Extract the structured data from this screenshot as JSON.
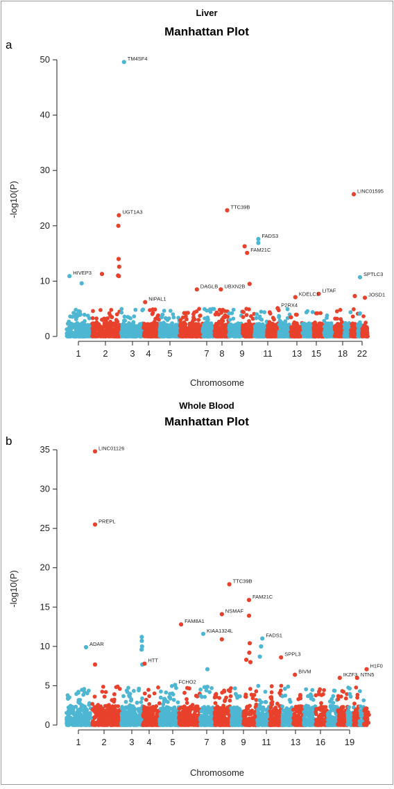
{
  "colors": {
    "odd": "#4db6d3",
    "even": "#e8412c",
    "frame": "#999999"
  },
  "chart_data": [
    {
      "type": "scatter",
      "panel_label": "a",
      "tissue": "Liver",
      "title": "Manhattan Plot",
      "xlabel": "Chromosome",
      "ylabel": "-log10(P)",
      "ylim": [
        0,
        50
      ],
      "yticks": [
        0,
        10,
        20,
        30,
        40,
        50
      ],
      "xtick_labels": [
        "1",
        "2",
        "3",
        "4",
        "5",
        "7",
        "8",
        "9",
        "11",
        "13",
        "15",
        "18",
        "22"
      ],
      "seed": 11,
      "annotated_points": [
        {
          "chrom": 3,
          "pos": 0.12,
          "y": 49.6,
          "gene": "TM4SF4"
        },
        {
          "chrom": 20,
          "pos": 0.4,
          "y": 25.7,
          "gene": "LINC01595"
        },
        {
          "chrom": 2,
          "pos": 0.96,
          "y": 21.9,
          "gene": "UGT1A3"
        },
        {
          "chrom": 8,
          "pos": 0.88,
          "y": 22.8,
          "gene": "TTC39B"
        },
        {
          "chrom": 11,
          "pos": 0.3,
          "y": 17.6,
          "gene": "FADS3"
        },
        {
          "chrom": 10,
          "pos": 0.4,
          "y": 15.1,
          "gene": "FAM21C"
        },
        {
          "chrom": 1,
          "pos": 0.12,
          "y": 10.9,
          "gene": "HIVEP3"
        },
        {
          "chrom": 21,
          "pos": 0.5,
          "y": 10.7,
          "gene": "SPTLC3"
        },
        {
          "chrom": 6,
          "pos": 0.75,
          "y": 8.5,
          "gene": "DAGLB"
        },
        {
          "chrom": 8,
          "pos": 0.45,
          "y": 8.5,
          "gene": "UBXN2B"
        },
        {
          "chrom": 16,
          "pos": 0.5,
          "y": 7.7,
          "gene": "LITAF"
        },
        {
          "chrom": 14,
          "pos": 0.4,
          "y": 7.1,
          "gene": "KDELC1"
        },
        {
          "chrom": 22,
          "pos": 0.5,
          "y": 7.0,
          "gene": "JOSD1"
        },
        {
          "chrom": 4,
          "pos": 0.1,
          "y": 6.2,
          "gene": "NIPAL1"
        },
        {
          "chrom": 12,
          "pos": 0.9,
          "y": 5.1,
          "gene": "P2RX4"
        }
      ],
      "extra_points": [
        {
          "chrom": 1,
          "pos": 0.62,
          "y": 9.6
        },
        {
          "chrom": 2,
          "pos": 0.35,
          "y": 11.3
        },
        {
          "chrom": 2,
          "pos": 0.94,
          "y": 20.0
        },
        {
          "chrom": 2,
          "pos": 0.95,
          "y": 14.0
        },
        {
          "chrom": 2,
          "pos": 0.97,
          "y": 12.6
        },
        {
          "chrom": 2,
          "pos": 0.93,
          "y": 11.0
        },
        {
          "chrom": 2,
          "pos": 0.96,
          "y": 10.9
        },
        {
          "chrom": 11,
          "pos": 0.3,
          "y": 16.9
        },
        {
          "chrom": 10,
          "pos": 0.2,
          "y": 16.3
        },
        {
          "chrom": 10,
          "pos": 0.6,
          "y": 9.5
        },
        {
          "chrom": 20,
          "pos": 0.55,
          "y": 7.3
        }
      ]
    },
    {
      "type": "scatter",
      "panel_label": "b",
      "tissue": "Whole Blood",
      "title": "Manhattan Plot",
      "xlabel": "Chromosome",
      "ylabel": "-log10(P)",
      "ylim": [
        0,
        35
      ],
      "yticks": [
        0,
        5,
        10,
        15,
        20,
        25,
        30,
        35
      ],
      "xtick_labels": [
        "1",
        "2",
        "3",
        "4",
        "5",
        "7",
        "8",
        "9",
        "11",
        "13",
        "16",
        "19"
      ],
      "seed": 29,
      "annotated_points": [
        {
          "chrom": 2,
          "pos": 0.1,
          "y": 34.8,
          "gene": "LINC01126"
        },
        {
          "chrom": 2,
          "pos": 0.1,
          "y": 25.5,
          "gene": "PREPL"
        },
        {
          "chrom": 8,
          "pos": 0.9,
          "y": 17.9,
          "gene": "TTC39B"
        },
        {
          "chrom": 10,
          "pos": 0.4,
          "y": 15.9,
          "gene": "FAM21C"
        },
        {
          "chrom": 8,
          "pos": 0.45,
          "y": 14.1,
          "gene": "NSMAF"
        },
        {
          "chrom": 6,
          "pos": 0.1,
          "y": 12.8,
          "gene": "FAM8A1"
        },
        {
          "chrom": 7,
          "pos": 0.2,
          "y": 11.6,
          "gene": "KIAA1324L"
        },
        {
          "chrom": 11,
          "pos": 0.4,
          "y": 11.0,
          "gene": "FADS1"
        },
        {
          "chrom": 1,
          "pos": 0.8,
          "y": 9.9,
          "gene": "ADAR"
        },
        {
          "chrom": 12,
          "pos": 0.9,
          "y": 8.6,
          "gene": "SPPL3"
        },
        {
          "chrom": 4,
          "pos": 0.1,
          "y": 7.8,
          "gene": "HTT"
        },
        {
          "chrom": 22,
          "pos": 0.5,
          "y": 7.1,
          "gene": "H1F0"
        },
        {
          "chrom": 14,
          "pos": 0.2,
          "y": 6.4,
          "gene": "BIVM"
        },
        {
          "chrom": 18,
          "pos": 0.2,
          "y": 6.0,
          "gene": "IKZF3"
        },
        {
          "chrom": 20,
          "pos": 0.6,
          "y": 6.0,
          "gene": "NTN5"
        },
        {
          "chrom": 5,
          "pos": 0.8,
          "y": 5.1,
          "gene": "FCHO2"
        }
      ],
      "extra_points": [
        {
          "chrom": 2,
          "pos": 0.1,
          "y": 7.7
        },
        {
          "chrom": 3,
          "pos": 0.95,
          "y": 11.2
        },
        {
          "chrom": 3,
          "pos": 0.95,
          "y": 10.7
        },
        {
          "chrom": 3,
          "pos": 0.96,
          "y": 10.0
        },
        {
          "chrom": 3,
          "pos": 0.94,
          "y": 9.6
        },
        {
          "chrom": 3,
          "pos": 0.97,
          "y": 7.7
        },
        {
          "chrom": 8,
          "pos": 0.45,
          "y": 10.9
        },
        {
          "chrom": 10,
          "pos": 0.4,
          "y": 13.9
        },
        {
          "chrom": 10,
          "pos": 0.45,
          "y": 10.4
        },
        {
          "chrom": 10,
          "pos": 0.42,
          "y": 9.2
        },
        {
          "chrom": 10,
          "pos": 0.5,
          "y": 8.0
        },
        {
          "chrom": 10,
          "pos": 0.2,
          "y": 8.3
        },
        {
          "chrom": 11,
          "pos": 0.3,
          "y": 10.0
        },
        {
          "chrom": 11,
          "pos": 0.2,
          "y": 8.7
        },
        {
          "chrom": 7,
          "pos": 0.5,
          "y": 7.1
        }
      ]
    }
  ]
}
